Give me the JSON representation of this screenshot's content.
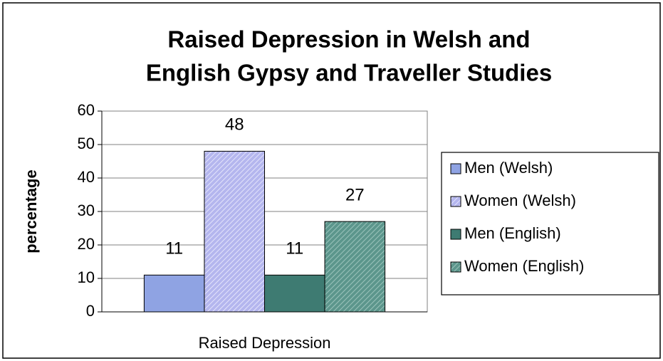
{
  "chart_data": {
    "type": "bar",
    "title": [
      "Raised Depression in Welsh and",
      "English Gypsy and Traveller Studies"
    ],
    "ylabel": "percentage",
    "categories": [
      "Raised Depression"
    ],
    "series": [
      {
        "name": "Men (Welsh)",
        "color": "#8fa3e3",
        "hatch": false,
        "values": [
          11
        ]
      },
      {
        "name": "Women (Welsh)",
        "color": "#b4b6ee",
        "hatch": true,
        "values": [
          48
        ]
      },
      {
        "name": "Men (English)",
        "color": "#3e7b72",
        "hatch": false,
        "values": [
          11
        ]
      },
      {
        "name": "Women (English)",
        "color": "#5c968c",
        "hatch": true,
        "values": [
          27
        ]
      }
    ],
    "ylim": [
      0,
      60
    ],
    "yticks": [
      0,
      10,
      20,
      30,
      40,
      50,
      60
    ],
    "grid": true,
    "legend": "right"
  }
}
